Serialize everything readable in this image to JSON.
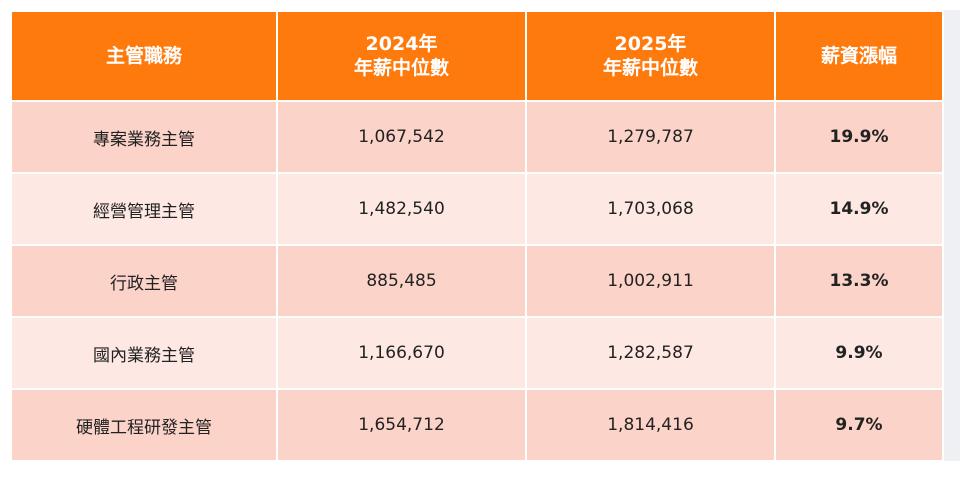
{
  "table": {
    "headers": {
      "role": "主管職務",
      "y2024_line1": "2024年",
      "y2024_line2": "年薪中位數",
      "y2025_line1": "2025年",
      "y2025_line2": "年薪中位數",
      "growth": "薪資漲幅"
    },
    "rows": [
      {
        "role": "專案業務主管",
        "y2024": "1,067,542",
        "y2025": "1,279,787",
        "growth": "19.9%"
      },
      {
        "role": "經營管理主管",
        "y2024": "1,482,540",
        "y2025": "1,703,068",
        "growth": "14.9%"
      },
      {
        "role": "行政主管",
        "y2024": "885,485",
        "y2025": "1,002,911",
        "growth": "13.3%"
      },
      {
        "role": "國內業務主管",
        "y2024": "1,166,670",
        "y2025": "1,282,587",
        "growth": "9.9%"
      },
      {
        "role": "硬體工程研發主管",
        "y2024": "1,654,712",
        "y2025": "1,814,416",
        "growth": "9.7%"
      }
    ]
  },
  "colors": {
    "header_bg": "#ff7a0d",
    "row_odd_bg": "#fcd3c8",
    "row_even_bg": "#fde8e4",
    "growth_text": "#c25a16"
  }
}
